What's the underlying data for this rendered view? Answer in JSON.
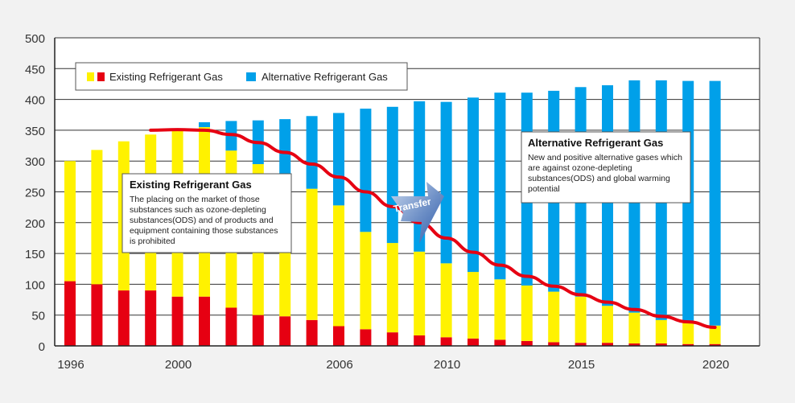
{
  "chart_data": {
    "type": "bar",
    "stacked": true,
    "x": [
      1996,
      1997,
      1998,
      1999,
      2000,
      2001,
      2002,
      2003,
      2004,
      2005,
      2006,
      2007,
      2008,
      2009,
      2010,
      2011,
      2012,
      2013,
      2014,
      2015,
      2016,
      2017,
      2018,
      2019,
      2020
    ],
    "series": [
      {
        "name": "Existing Refrigerant Gas",
        "color": "#e60012",
        "component": "existing-red",
        "values": [
          105,
          100,
          90,
          90,
          80,
          80,
          62,
          50,
          48,
          42,
          32,
          27,
          22,
          17,
          14,
          12,
          10,
          8,
          6,
          5,
          5,
          4,
          4,
          3,
          3
        ]
      },
      {
        "name": "Existing Refrigerant Gas",
        "color": "#fff200",
        "component": "existing-yellow",
        "values": [
          195,
          218,
          242,
          253,
          270,
          275,
          255,
          245,
          232,
          213,
          196,
          158,
          145,
          136,
          120,
          108,
          98,
          90,
          82,
          75,
          60,
          50,
          38,
          35,
          30
        ]
      },
      {
        "name": "Alternative Refrigerant Gas",
        "color": "#00a0e9",
        "values": [
          0,
          0,
          0,
          0,
          0,
          8,
          48,
          71,
          88,
          118,
          150,
          200,
          221,
          244,
          262,
          283,
          303,
          313,
          326,
          340,
          358,
          377,
          389,
          392,
          397
        ]
      }
    ],
    "trend_line": {
      "color": "#e60012",
      "points": [
        [
          1999,
          350
        ],
        [
          2000,
          351
        ],
        [
          2001,
          350
        ],
        [
          2002,
          343
        ],
        [
          2003,
          330
        ],
        [
          2004,
          314
        ],
        [
          2005,
          295
        ],
        [
          2006,
          274
        ],
        [
          2007,
          250
        ],
        [
          2008,
          226
        ],
        [
          2009,
          200
        ],
        [
          2010,
          175
        ],
        [
          2011,
          152
        ],
        [
          2012,
          131
        ],
        [
          2013,
          113
        ],
        [
          2014,
          97
        ],
        [
          2015,
          83
        ],
        [
          2016,
          71
        ],
        [
          2017,
          59
        ],
        [
          2018,
          48
        ],
        [
          2019,
          39
        ],
        [
          2020,
          30
        ]
      ]
    },
    "ylim": [
      0,
      500
    ],
    "yticks": [
      0,
      50,
      100,
      150,
      200,
      250,
      300,
      350,
      400,
      450,
      500
    ],
    "xticks": [
      1996,
      2000,
      2006,
      2010,
      2015,
      2020
    ],
    "grid": true,
    "legend": {
      "placement": "top-left",
      "items": [
        {
          "label": "Existing Refrigerant Gas",
          "colors": [
            "#fff200",
            "#e60012"
          ]
        },
        {
          "label": "Alternative Refrigerant Gas",
          "colors": [
            "#00a0e9"
          ]
        }
      ]
    },
    "annotations": {
      "existing": {
        "title": "Existing Refrigerant Gas",
        "lines": [
          "The placing on the market of those",
          "substances such as ozone-depleting",
          "substances(ODS) and of products and",
          "equipment containing those substances",
          "is prohibited"
        ]
      },
      "alternative": {
        "title": "Alternative Refrigerant Gas",
        "lines": [
          "New and positive alternative gases which",
          "are against ozone-depleting",
          "substances(ODS) and global warming",
          "potential"
        ]
      },
      "transfer": "Transfer"
    }
  }
}
